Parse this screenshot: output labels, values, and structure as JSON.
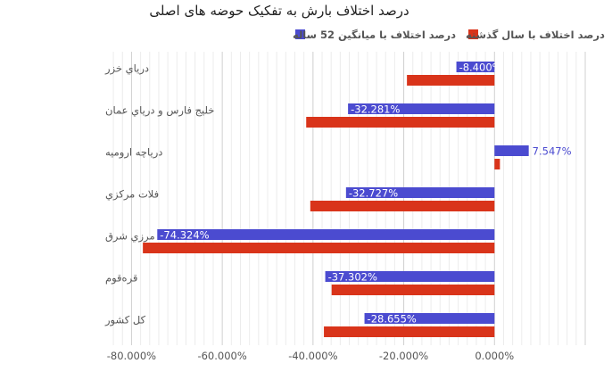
{
  "chart_data": {
    "type": "bar",
    "orientation": "horizontal",
    "title": "درصد اختلاف بارش به تفکیک حوضه های اصلی",
    "categories": [
      "درياي خزر",
      "خليج فارس و درياي عمان",
      "درياچه اروميه",
      "فلات مركزي",
      "مرزي شرق",
      "قرەقوم",
      "كل كشور"
    ],
    "series": [
      {
        "name": "درصد اختلاف با میانگین 52 ساله",
        "color": "#4b4bd0",
        "values": [
          -8.4,
          -32.281,
          7.547,
          -32.727,
          -74.324,
          -37.302,
          -28.655
        ],
        "labels": [
          "-8.400%",
          "-32.281%",
          "7.547%",
          "-32.727%",
          "-74.324%",
          "-37.302%",
          "-28.655%"
        ]
      },
      {
        "name": "درصد اختلاف با سال گذشته",
        "color": "#d9341a",
        "values": [
          -19.3,
          -41.5,
          1.2,
          -40.6,
          -77.5,
          -35.9,
          -37.6
        ]
      }
    ],
    "xlim": [
      -85,
      20
    ],
    "xticks": [
      -80,
      -60,
      -40,
      -20,
      0
    ],
    "xtick_labels": [
      "-80.000%",
      "-60.000%",
      "-40.000%",
      "-20.000%",
      "0.000%"
    ],
    "grid": true,
    "legend_position": "top"
  }
}
